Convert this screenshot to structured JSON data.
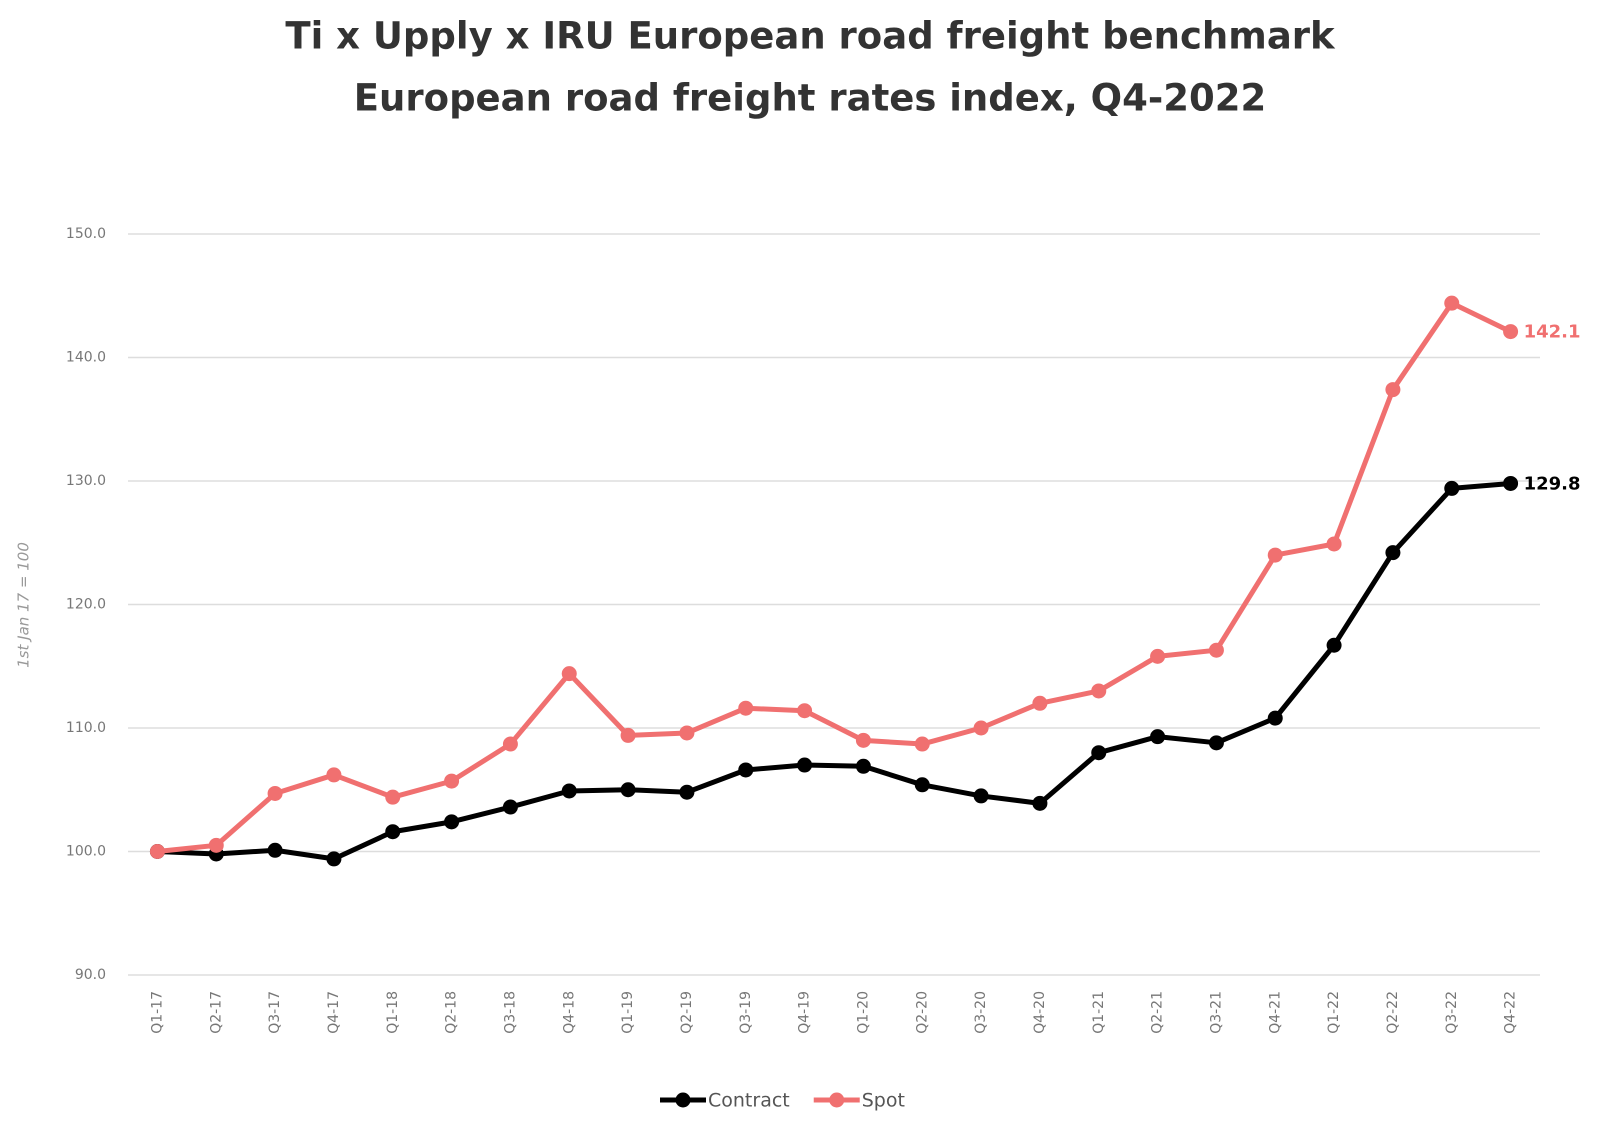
{
  "chart_data": {
    "type": "line",
    "title": "Ti x Upply x IRU European road freight benchmark",
    "subtitle": "European road freight rates index, Q4-2022",
    "y_label": "1st Jan 17 = 100",
    "categories": [
      "Q1-17",
      "Q2-17",
      "Q3-17",
      "Q4-17",
      "Q1-18",
      "Q2-18",
      "Q3-18",
      "Q4-18",
      "Q1-19",
      "Q2-19",
      "Q3-19",
      "Q4-19",
      "Q1-20",
      "Q2-20",
      "Q3-20",
      "Q4-20",
      "Q1-21",
      "Q2-21",
      "Q3-21",
      "Q4-21",
      "Q1-22",
      "Q2-22",
      "Q3-22",
      "Q4-22"
    ],
    "series": [
      {
        "name": "Contract",
        "color": "#000000",
        "values": [
          100.0,
          99.8,
          100.1,
          99.4,
          101.6,
          102.4,
          103.6,
          104.9,
          105.0,
          104.8,
          106.6,
          107.0,
          106.9,
          105.4,
          104.5,
          103.9,
          108.0,
          109.3,
          108.8,
          110.8,
          116.7,
          124.2,
          129.4,
          129.8
        ]
      },
      {
        "name": "Spot",
        "color": "#f07070",
        "values": [
          100.0,
          100.5,
          104.7,
          106.2,
          104.4,
          105.7,
          108.7,
          114.4,
          109.4,
          109.6,
          111.6,
          111.4,
          109.0,
          108.7,
          110.0,
          112.0,
          113.0,
          115.8,
          116.3,
          124.0,
          124.9,
          137.4,
          144.4,
          142.1
        ]
      }
    ],
    "ylim": [
      90,
      150
    ],
    "yticks": [
      {
        "value": 90,
        "label": "90.0"
      },
      {
        "value": 100,
        "label": "100.0"
      },
      {
        "value": 110,
        "label": "110.0"
      },
      {
        "value": 120,
        "label": "120.0"
      },
      {
        "value": 130,
        "label": "130.0"
      },
      {
        "value": 140,
        "label": "140.0"
      },
      {
        "value": 150,
        "label": "150.0"
      }
    ],
    "grid": true,
    "legend": "bottom"
  }
}
